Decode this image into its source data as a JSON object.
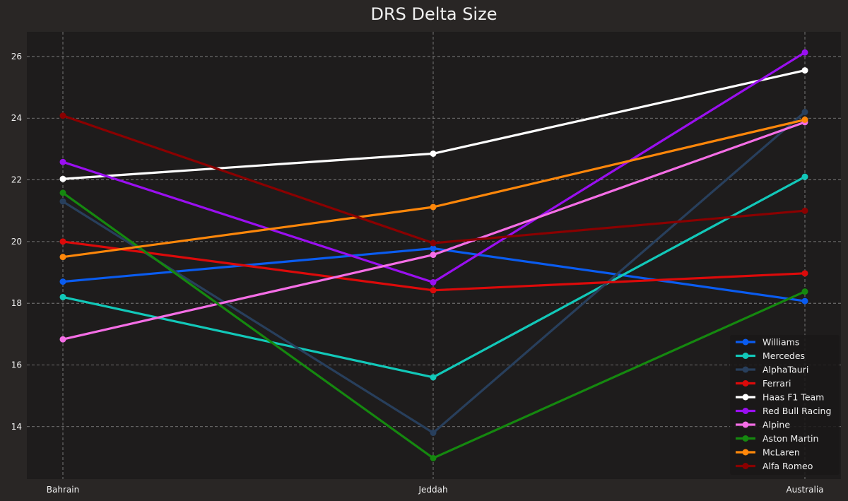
{
  "chart_data": {
    "type": "line",
    "title": "DRS Delta Size",
    "xlabel": "",
    "ylabel": "",
    "categories": [
      "Bahrain",
      "Jeddah",
      "Australia"
    ],
    "ylim": [
      12.3,
      26.8
    ],
    "yticks": [
      14,
      16,
      18,
      20,
      22,
      24,
      26
    ],
    "grid": true,
    "legend_position": "lower-right",
    "series": [
      {
        "name": "Williams",
        "color": "#0a5cf0",
        "values": [
          18.7,
          19.78,
          18.07
        ]
      },
      {
        "name": "Mercedes",
        "color": "#12c8b9",
        "values": [
          18.2,
          15.6,
          22.1
        ]
      },
      {
        "name": "AlphaTauri",
        "color": "#283f5c",
        "values": [
          21.3,
          13.8,
          24.2
        ]
      },
      {
        "name": "Ferrari",
        "color": "#dc0a0a",
        "values": [
          20.0,
          18.42,
          18.97
        ]
      },
      {
        "name": "Haas F1 Team",
        "color": "#ffffff",
        "values": [
          22.03,
          22.85,
          25.55
        ]
      },
      {
        "name": "Red Bull Racing",
        "color": "#9a0ff0",
        "values": [
          22.58,
          18.68,
          26.13
        ]
      },
      {
        "name": "Alpine",
        "color": "#f56ee6",
        "values": [
          16.83,
          19.57,
          23.87
        ]
      },
      {
        "name": "Aston Martin",
        "color": "#15880f",
        "values": [
          21.58,
          12.98,
          18.38
        ]
      },
      {
        "name": "McLaren",
        "color": "#ff870a",
        "values": [
          19.5,
          21.12,
          23.95
        ]
      },
      {
        "name": "Alfa Romeo",
        "color": "#8a0000",
        "values": [
          24.08,
          19.95,
          21.0
        ]
      }
    ]
  }
}
